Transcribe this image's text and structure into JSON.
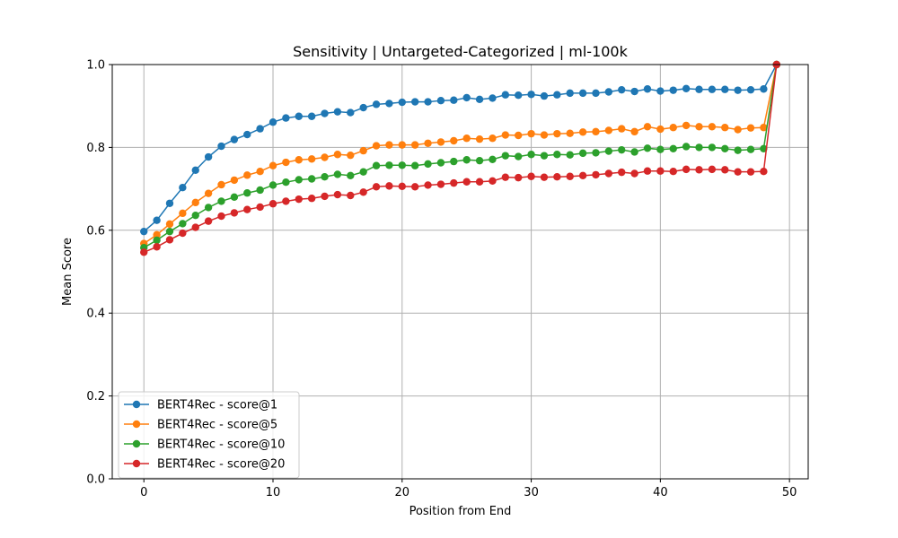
{
  "chart_data": {
    "type": "line",
    "title": "Sensitivity | Untargeted-Categorized | ml-100k",
    "xlabel": "Position from End",
    "ylabel": "Mean Score",
    "xlim": [
      -2.45,
      51.45
    ],
    "ylim": [
      0.0,
      1.0
    ],
    "xticks": [
      0,
      10,
      20,
      30,
      40,
      50
    ],
    "yticks": [
      0.0,
      0.2,
      0.4,
      0.6,
      0.8,
      1.0
    ],
    "xtick_labels": [
      "0",
      "10",
      "20",
      "30",
      "40",
      "50"
    ],
    "ytick_labels": [
      "0.0",
      "0.2",
      "0.4",
      "0.6",
      "0.8",
      "1.0"
    ],
    "grid": true,
    "legend_position": "lower-left",
    "x": [
      0,
      1,
      2,
      3,
      4,
      5,
      6,
      7,
      8,
      9,
      10,
      11,
      12,
      13,
      14,
      15,
      16,
      17,
      18,
      19,
      20,
      21,
      22,
      23,
      24,
      25,
      26,
      27,
      28,
      29,
      30,
      31,
      32,
      33,
      34,
      35,
      36,
      37,
      38,
      39,
      40,
      41,
      42,
      43,
      44,
      45,
      46,
      47,
      48,
      49
    ],
    "series": [
      {
        "name": "BERT4Rec - score@1",
        "color": "#1f77b4",
        "values": [
          0.597,
          0.624,
          0.665,
          0.703,
          0.745,
          0.777,
          0.803,
          0.819,
          0.831,
          0.845,
          0.861,
          0.871,
          0.875,
          0.875,
          0.882,
          0.886,
          0.884,
          0.896,
          0.904,
          0.906,
          0.909,
          0.91,
          0.91,
          0.913,
          0.914,
          0.92,
          0.916,
          0.919,
          0.927,
          0.926,
          0.928,
          0.924,
          0.927,
          0.931,
          0.931,
          0.931,
          0.934,
          0.939,
          0.935,
          0.941,
          0.936,
          0.938,
          0.942,
          0.94,
          0.94,
          0.94,
          0.938,
          0.939,
          0.941,
          1.0
        ]
      },
      {
        "name": "BERT4Rec - score@5",
        "color": "#ff7f0e",
        "values": [
          0.568,
          0.589,
          0.615,
          0.641,
          0.667,
          0.689,
          0.71,
          0.721,
          0.733,
          0.742,
          0.756,
          0.764,
          0.77,
          0.772,
          0.776,
          0.783,
          0.781,
          0.792,
          0.804,
          0.806,
          0.806,
          0.806,
          0.81,
          0.813,
          0.816,
          0.822,
          0.82,
          0.822,
          0.83,
          0.829,
          0.833,
          0.83,
          0.833,
          0.834,
          0.837,
          0.838,
          0.841,
          0.845,
          0.838,
          0.85,
          0.844,
          0.848,
          0.853,
          0.85,
          0.85,
          0.848,
          0.843,
          0.847,
          0.848,
          1.0
        ]
      },
      {
        "name": "BERT4Rec - score@10",
        "color": "#2ca02c",
        "values": [
          0.558,
          0.576,
          0.597,
          0.616,
          0.636,
          0.655,
          0.67,
          0.68,
          0.69,
          0.697,
          0.709,
          0.716,
          0.722,
          0.724,
          0.729,
          0.735,
          0.732,
          0.741,
          0.756,
          0.757,
          0.757,
          0.756,
          0.76,
          0.763,
          0.766,
          0.77,
          0.768,
          0.771,
          0.78,
          0.778,
          0.783,
          0.78,
          0.783,
          0.782,
          0.786,
          0.787,
          0.791,
          0.794,
          0.789,
          0.798,
          0.795,
          0.797,
          0.802,
          0.8,
          0.8,
          0.797,
          0.793,
          0.795,
          0.797,
          1.0
        ]
      },
      {
        "name": "BERT4Rec - score@20",
        "color": "#d62728",
        "values": [
          0.547,
          0.56,
          0.577,
          0.593,
          0.607,
          0.622,
          0.634,
          0.642,
          0.65,
          0.656,
          0.664,
          0.67,
          0.675,
          0.677,
          0.682,
          0.686,
          0.684,
          0.692,
          0.705,
          0.707,
          0.706,
          0.705,
          0.709,
          0.711,
          0.714,
          0.717,
          0.717,
          0.719,
          0.728,
          0.727,
          0.73,
          0.728,
          0.729,
          0.73,
          0.732,
          0.734,
          0.737,
          0.74,
          0.737,
          0.743,
          0.743,
          0.742,
          0.747,
          0.746,
          0.747,
          0.746,
          0.741,
          0.741,
          0.742,
          1.0
        ]
      }
    ]
  }
}
